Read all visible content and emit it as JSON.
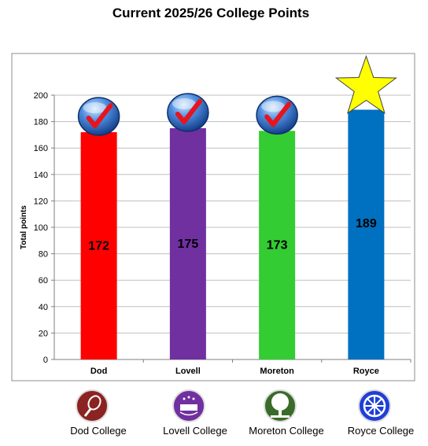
{
  "chart_data": {
    "type": "bar",
    "title": "Current 2025/26 College Points",
    "xlabel": "",
    "ylabel": "Total points",
    "ylim": [
      0,
      200
    ],
    "yticks": [
      0,
      20,
      40,
      60,
      80,
      100,
      120,
      140,
      160,
      180,
      200
    ],
    "grid": true,
    "categories": [
      "Dod",
      "Lovell",
      "Moreton",
      "Royce"
    ],
    "values": [
      172,
      175,
      173,
      189
    ],
    "colors": [
      "#ff0000",
      "#7030a0",
      "#33cc33",
      "#0070c0"
    ],
    "bar_icons": [
      "check-badge",
      "check-badge",
      "check-badge",
      "star"
    ],
    "legend": [
      {
        "label": "Dod College",
        "icon": "tennis-racket-crest-icon",
        "color": "#8b2323"
      },
      {
        "label": "Lovell College",
        "icon": "castle-crest-icon",
        "color": "#7030a0"
      },
      {
        "label": "Moreton College",
        "icon": "tree-crest-icon",
        "color": "#3a6b2a"
      },
      {
        "label": "Royce College",
        "icon": "wheel-crest-icon",
        "color": "#1f3fd6"
      }
    ]
  }
}
